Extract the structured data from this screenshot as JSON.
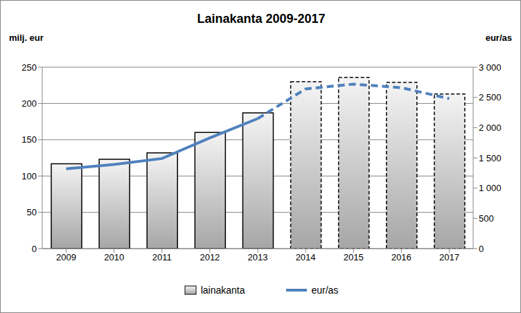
{
  "chart_data": {
    "type": "bar",
    "title": "Lainakanta 2009-2017",
    "y_label": "milj. eur",
    "y2_label": "eur/as",
    "categories": [
      "2009",
      "2010",
      "2011",
      "2012",
      "2013",
      "2014",
      "2015",
      "2016",
      "2017"
    ],
    "series": [
      {
        "name": "lainakanta",
        "type": "bar",
        "color": "#a6a6a6",
        "line_style": "solid",
        "values": [
          117,
          123,
          132,
          160,
          187,
          null,
          null,
          null,
          null
        ]
      },
      {
        "name": "lainakanta",
        "type": "bar",
        "color": "#a6a6a6",
        "line_style": "dashed",
        "values": [
          null,
          null,
          null,
          null,
          null,
          230,
          236,
          229,
          213
        ]
      },
      {
        "name": "eur/as",
        "type": "line",
        "axis": "y2",
        "color": "#4f81bd",
        "line_style": "solid",
        "values": [
          1320,
          1390,
          1490,
          1830,
          2150,
          null,
          null,
          null,
          null
        ]
      },
      {
        "name": "eur/as",
        "type": "line",
        "axis": "y2",
        "color": "#4f81bd",
        "line_style": "dashed",
        "values": [
          null,
          null,
          null,
          null,
          2150,
          2640,
          2720,
          2660,
          2480
        ]
      }
    ],
    "ylim": [
      0,
      250
    ],
    "yticks": [
      0,
      50,
      100,
      150,
      200,
      250
    ],
    "y2lim": [
      0,
      3000
    ],
    "y2ticks": [
      0,
      500,
      {
        "value": 1000,
        "label": "1 000"
      },
      {
        "value": 1500,
        "label": "1 500"
      },
      {
        "value": 2000,
        "label": "2 000"
      },
      {
        "value": 2500,
        "label": "2 500"
      },
      {
        "value": 3000,
        "label": "3 000"
      }
    ],
    "grid": true,
    "legend": "bottom"
  }
}
